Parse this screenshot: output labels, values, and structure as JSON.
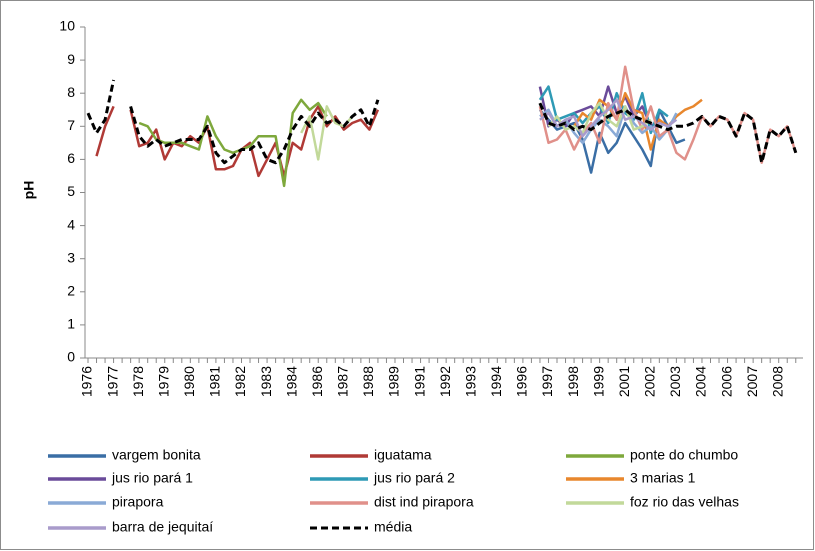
{
  "chart_data": {
    "type": "line",
    "y_label": "pH",
    "categories": [
      "1976",
      null,
      null,
      "1977",
      null,
      null,
      "1978",
      null,
      null,
      "1979",
      null,
      null,
      "1980",
      null,
      null,
      "1981",
      null,
      null,
      "1982",
      null,
      null,
      "1983",
      null,
      null,
      "1984",
      null,
      null,
      "1986",
      null,
      null,
      "1987",
      null,
      null,
      "1988",
      null,
      null,
      "1989",
      null,
      null,
      "1991",
      null,
      null,
      "1992",
      null,
      null,
      "1993",
      null,
      null,
      "1994",
      null,
      null,
      "1996",
      null,
      null,
      "1997",
      null,
      null,
      "1998",
      null,
      null,
      "1999",
      null,
      null,
      "2001",
      null,
      null,
      "2002",
      null,
      null,
      "2003",
      null,
      null,
      "2004",
      null,
      null,
      "2006",
      null,
      null,
      "2007",
      null,
      null,
      "2008",
      null,
      null
    ],
    "ylim": [
      0,
      10
    ],
    "yticks": [
      0,
      1,
      2,
      3,
      4,
      5,
      6,
      7,
      8,
      9,
      10
    ],
    "series": [
      {
        "name": "vargem bonita",
        "color": "#3a6ea5",
        "values": [
          null,
          null,
          null,
          null,
          null,
          null,
          null,
          null,
          null,
          null,
          null,
          null,
          null,
          null,
          null,
          null,
          null,
          null,
          null,
          null,
          null,
          null,
          null,
          null,
          null,
          null,
          null,
          null,
          null,
          null,
          null,
          null,
          null,
          null,
          null,
          null,
          null,
          null,
          null,
          null,
          null,
          null,
          null,
          null,
          null,
          null,
          null,
          null,
          null,
          null,
          null,
          null,
          null,
          7.5,
          7.2,
          6.9,
          7.0,
          7.1,
          6.6,
          5.6,
          6.8,
          6.2,
          6.5,
          7.1,
          6.7,
          6.3,
          5.8,
          7.5,
          7.0,
          6.5,
          6.6,
          null,
          null,
          null,
          null,
          null,
          null,
          null,
          null,
          null,
          null,
          null,
          null,
          null
        ]
      },
      {
        "name": "iguatama",
        "color": "#b03a36",
        "values": [
          null,
          6.1,
          7.0,
          7.6,
          null,
          7.5,
          6.4,
          6.5,
          6.9,
          6.0,
          6.5,
          6.4,
          6.7,
          6.5,
          7.0,
          5.7,
          5.7,
          5.8,
          6.3,
          6.5,
          5.5,
          6.0,
          6.5,
          5.5,
          6.5,
          6.3,
          7.2,
          7.6,
          7.0,
          7.3,
          6.9,
          7.1,
          7.2,
          6.9,
          7.5,
          null,
          null,
          null,
          null,
          null,
          null,
          null,
          null,
          null,
          null,
          null,
          null,
          null,
          null,
          null,
          null,
          null,
          null,
          null,
          null,
          null,
          null,
          null,
          null,
          null,
          null,
          null,
          null,
          null,
          null,
          null,
          null,
          null,
          null,
          null,
          null,
          null,
          null,
          null,
          null,
          null,
          null,
          null,
          null,
          null,
          null,
          null,
          null,
          null
        ]
      },
      {
        "name": "ponte do chumbo",
        "color": "#7ea83c",
        "values": [
          null,
          null,
          null,
          null,
          null,
          null,
          7.1,
          7.0,
          6.6,
          6.5,
          6.5,
          6.5,
          6.4,
          6.3,
          7.3,
          6.7,
          6.3,
          6.2,
          6.3,
          6.4,
          6.7,
          6.7,
          6.7,
          5.2,
          7.4,
          7.8,
          7.5,
          7.7,
          7.3,
          null,
          null,
          null,
          null,
          null,
          null,
          null,
          null,
          null,
          null,
          null,
          null,
          null,
          null,
          null,
          null,
          null,
          null,
          null,
          null,
          null,
          null,
          null,
          null,
          null,
          null,
          null,
          null,
          null,
          null,
          null,
          null,
          null,
          null,
          null,
          null,
          null,
          null,
          null,
          null,
          null,
          null,
          null,
          null,
          null,
          null,
          null,
          null,
          null,
          null,
          null,
          null,
          null,
          null,
          null
        ]
      },
      {
        "name": "jus rio pará 1",
        "color": "#6a4b9a",
        "values": [
          null,
          null,
          null,
          null,
          null,
          null,
          null,
          null,
          null,
          null,
          null,
          null,
          null,
          null,
          null,
          null,
          null,
          null,
          null,
          null,
          null,
          null,
          null,
          null,
          null,
          null,
          null,
          null,
          null,
          null,
          null,
          null,
          null,
          null,
          null,
          null,
          null,
          null,
          null,
          null,
          null,
          null,
          null,
          null,
          null,
          null,
          null,
          null,
          null,
          null,
          null,
          null,
          null,
          8.2,
          7.0,
          7.2,
          7.0,
          7.4,
          7.5,
          7.6,
          7.3,
          8.2,
          7.4,
          7.9,
          7.3,
          7.6,
          7.0,
          7.2,
          null,
          null,
          null,
          null,
          null,
          null,
          null,
          null,
          null,
          null,
          null,
          null,
          null,
          null,
          null,
          null
        ]
      },
      {
        "name": "jus rio pará 2",
        "color": "#2e9ab5",
        "values": [
          null,
          null,
          null,
          null,
          null,
          null,
          null,
          null,
          null,
          null,
          null,
          null,
          null,
          null,
          null,
          null,
          null,
          null,
          null,
          null,
          null,
          null,
          null,
          null,
          null,
          null,
          null,
          null,
          null,
          null,
          null,
          null,
          null,
          null,
          null,
          null,
          null,
          null,
          null,
          null,
          null,
          null,
          null,
          null,
          null,
          null,
          null,
          null,
          null,
          null,
          null,
          null,
          null,
          7.8,
          8.2,
          7.2,
          7.3,
          7.4,
          7.1,
          7.4,
          7.6,
          7.1,
          8.0,
          7.4,
          7.2,
          8.0,
          6.8,
          7.5,
          7.3,
          null,
          null,
          null,
          null,
          null,
          null,
          null,
          null,
          null,
          null,
          null,
          null,
          null,
          null,
          null
        ]
      },
      {
        "name": "3 marias 1",
        "color": "#e8872d",
        "values": [
          null,
          null,
          null,
          null,
          null,
          null,
          null,
          null,
          null,
          null,
          null,
          null,
          null,
          null,
          null,
          null,
          null,
          null,
          null,
          null,
          null,
          null,
          null,
          null,
          null,
          null,
          null,
          null,
          null,
          null,
          null,
          null,
          null,
          null,
          null,
          null,
          null,
          null,
          null,
          null,
          null,
          null,
          null,
          null,
          null,
          null,
          null,
          null,
          null,
          null,
          null,
          null,
          null,
          null,
          null,
          null,
          null,
          7.0,
          7.4,
          7.2,
          7.8,
          7.6,
          7.2,
          8.0,
          7.5,
          7.4,
          6.3,
          7.2,
          7.0,
          7.3,
          7.5,
          7.6,
          7.8,
          null,
          null,
          null,
          null,
          null,
          null,
          null,
          null,
          null,
          null,
          null
        ]
      },
      {
        "name": "pirapora",
        "color": "#8aaad6",
        "values": [
          null,
          null,
          null,
          null,
          null,
          null,
          null,
          null,
          null,
          null,
          null,
          null,
          null,
          null,
          null,
          null,
          null,
          null,
          null,
          null,
          null,
          null,
          null,
          null,
          null,
          null,
          null,
          null,
          null,
          null,
          null,
          null,
          null,
          null,
          null,
          null,
          null,
          null,
          null,
          null,
          null,
          null,
          null,
          null,
          null,
          null,
          null,
          null,
          null,
          null,
          null,
          null,
          null,
          7.3,
          7.5,
          7.0,
          7.2,
          6.8,
          6.5,
          6.9,
          7.2,
          7.0,
          6.7,
          7.6,
          7.1,
          6.8,
          7.0,
          6.6,
          6.9,
          7.4,
          null,
          null,
          null,
          null,
          null,
          null,
          null,
          null,
          null,
          null,
          null,
          null,
          null,
          null
        ]
      },
      {
        "name": "dist ind pirapora",
        "color": "#e0908a",
        "values": [
          null,
          null,
          null,
          null,
          null,
          null,
          null,
          null,
          null,
          null,
          null,
          null,
          null,
          null,
          null,
          null,
          null,
          null,
          null,
          null,
          null,
          null,
          null,
          null,
          null,
          null,
          null,
          null,
          null,
          null,
          null,
          null,
          null,
          null,
          null,
          null,
          null,
          null,
          null,
          null,
          null,
          null,
          null,
          null,
          null,
          null,
          null,
          null,
          null,
          null,
          null,
          null,
          null,
          7.6,
          6.5,
          6.6,
          6.9,
          6.3,
          6.8,
          7.1,
          6.5,
          7.7,
          7.2,
          8.8,
          7.5,
          6.9,
          7.6,
          6.7,
          6.9,
          6.2,
          6.0,
          6.6,
          7.3,
          7.0,
          7.3,
          7.2,
          6.7,
          7.4,
          7.2,
          5.9,
          6.9,
          6.7,
          7.0,
          6.2
        ]
      },
      {
        "name": "foz rio das velhas",
        "color": "#c2d99a",
        "values": [
          null,
          null,
          null,
          null,
          null,
          null,
          null,
          null,
          null,
          null,
          null,
          null,
          null,
          null,
          null,
          null,
          null,
          null,
          null,
          null,
          null,
          null,
          null,
          null,
          null,
          6.8,
          7.3,
          6.0,
          7.6,
          7.1,
          7.0,
          7.3,
          null,
          null,
          null,
          null,
          null,
          null,
          null,
          null,
          null,
          null,
          null,
          null,
          null,
          null,
          null,
          null,
          null,
          null,
          null,
          null,
          null,
          null,
          7.0,
          7.3,
          6.9,
          7.0,
          6.8,
          7.4,
          7.7,
          7.2,
          7.0,
          7.6,
          6.9,
          7.0,
          7.2,
          null,
          null,
          null,
          null,
          null,
          null,
          null,
          null,
          null,
          null,
          null,
          null,
          null,
          null,
          null,
          null,
          null
        ]
      },
      {
        "name": "barra de jequitaí",
        "color": "#a99bcb",
        "values": [
          null,
          null,
          null,
          null,
          null,
          null,
          null,
          null,
          null,
          null,
          null,
          null,
          null,
          null,
          null,
          null,
          null,
          null,
          null,
          null,
          null,
          null,
          null,
          null,
          null,
          null,
          null,
          null,
          null,
          null,
          null,
          null,
          null,
          null,
          null,
          null,
          null,
          null,
          null,
          null,
          null,
          null,
          null,
          null,
          null,
          null,
          null,
          null,
          null,
          null,
          null,
          null,
          null,
          7.2,
          7.4,
          7.0,
          7.2,
          7.3,
          6.7,
          7.0,
          7.3,
          7.5,
          7.8,
          7.2,
          7.3,
          7.1,
          6.9,
          7.1,
          7.0,
          7.2,
          null,
          null,
          null,
          null,
          null,
          null,
          null,
          null,
          null,
          null,
          null,
          null,
          null,
          null
        ]
      },
      {
        "name": "média",
        "color": "#000000",
        "dashed": true,
        "values": [
          7.4,
          6.8,
          7.2,
          8.4,
          null,
          7.6,
          6.7,
          6.4,
          6.6,
          6.4,
          6.5,
          6.6,
          6.6,
          6.6,
          7.0,
          6.2,
          5.9,
          6.1,
          6.3,
          6.3,
          6.5,
          6.0,
          5.9,
          6.3,
          6.9,
          7.3,
          7.0,
          7.4,
          7.1,
          7.2,
          7.0,
          7.3,
          7.5,
          7.0,
          7.8,
          null,
          null,
          null,
          null,
          null,
          null,
          null,
          null,
          null,
          null,
          null,
          null,
          null,
          null,
          null,
          null,
          null,
          null,
          7.7,
          7.1,
          7.0,
          7.1,
          6.9,
          7.0,
          6.9,
          7.1,
          7.3,
          7.4,
          7.5,
          7.3,
          7.2,
          7.1,
          7.0,
          6.9,
          7.0,
          7.0,
          7.1,
          7.3,
          7.0,
          7.3,
          7.2,
          6.7,
          7.4,
          7.2,
          5.9,
          6.9,
          6.7,
          7.0,
          6.2
        ]
      }
    ]
  }
}
